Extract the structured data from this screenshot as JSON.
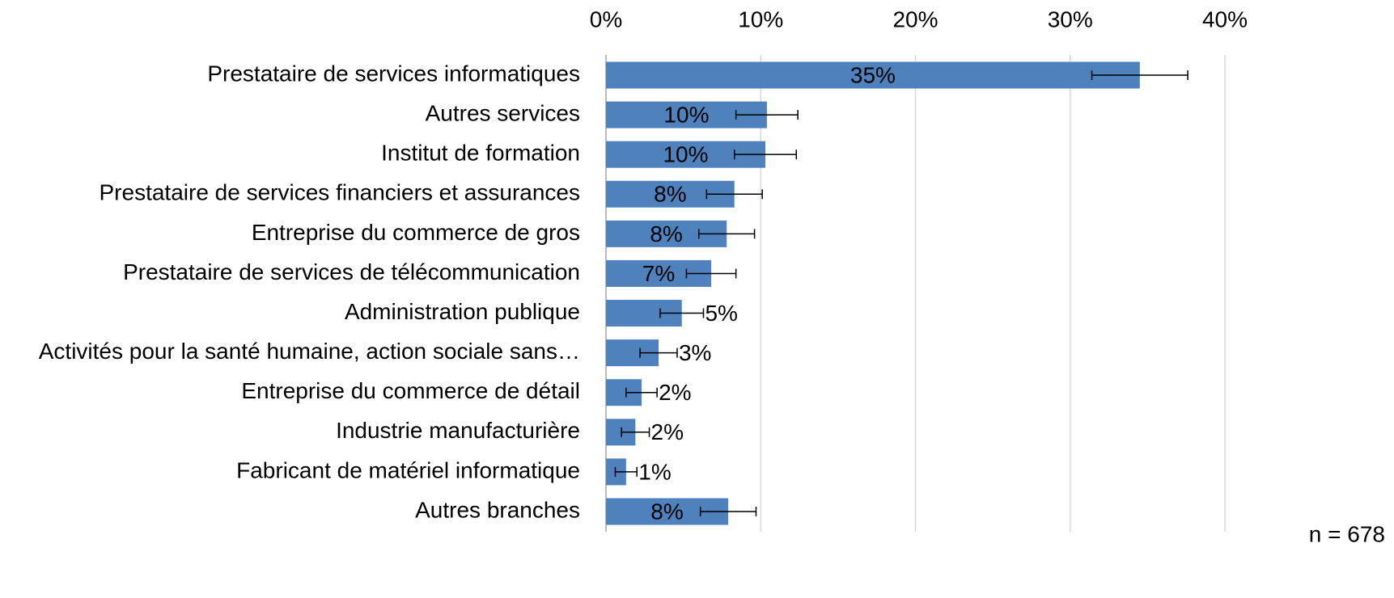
{
  "chart_data": {
    "type": "bar",
    "orientation": "horizontal",
    "categories": [
      "Prestataire de services informatiques",
      "Autres services",
      "Institut de formation",
      "Prestataire de services financiers et assurances",
      "Entreprise du commerce de gros",
      "Prestataire de services de télécommunication",
      "Administration publique",
      "Activités pour la santé humaine, action sociale sans…",
      "Entreprise du commerce de détail",
      "Industrie manufacturière",
      "Fabricant de matériel informatique",
      "Autres branches"
    ],
    "values": [
      34.5,
      10.4,
      10.3,
      8.3,
      7.8,
      6.8,
      4.9,
      3.4,
      2.3,
      1.9,
      1.3,
      7.9
    ],
    "value_labels": [
      "35%",
      "10%",
      "10%",
      "8%",
      "8%",
      "7%",
      "5%",
      "3%",
      "2%",
      "2%",
      "1%",
      "8%"
    ],
    "errors": [
      3.1,
      2.0,
      2.0,
      1.8,
      1.8,
      1.6,
      1.4,
      1.2,
      1.0,
      0.9,
      0.7,
      1.8
    ],
    "color": "#4f81bd",
    "xlim": [
      0,
      40
    ],
    "xticks": [
      {
        "value": 0,
        "label": "0%"
      },
      {
        "value": 10,
        "label": "10%"
      },
      {
        "value": 20,
        "label": "20%"
      },
      {
        "value": 30,
        "label": "30%"
      },
      {
        "value": 40,
        "label": "40%"
      }
    ],
    "grid": true,
    "note": "n = 678"
  }
}
